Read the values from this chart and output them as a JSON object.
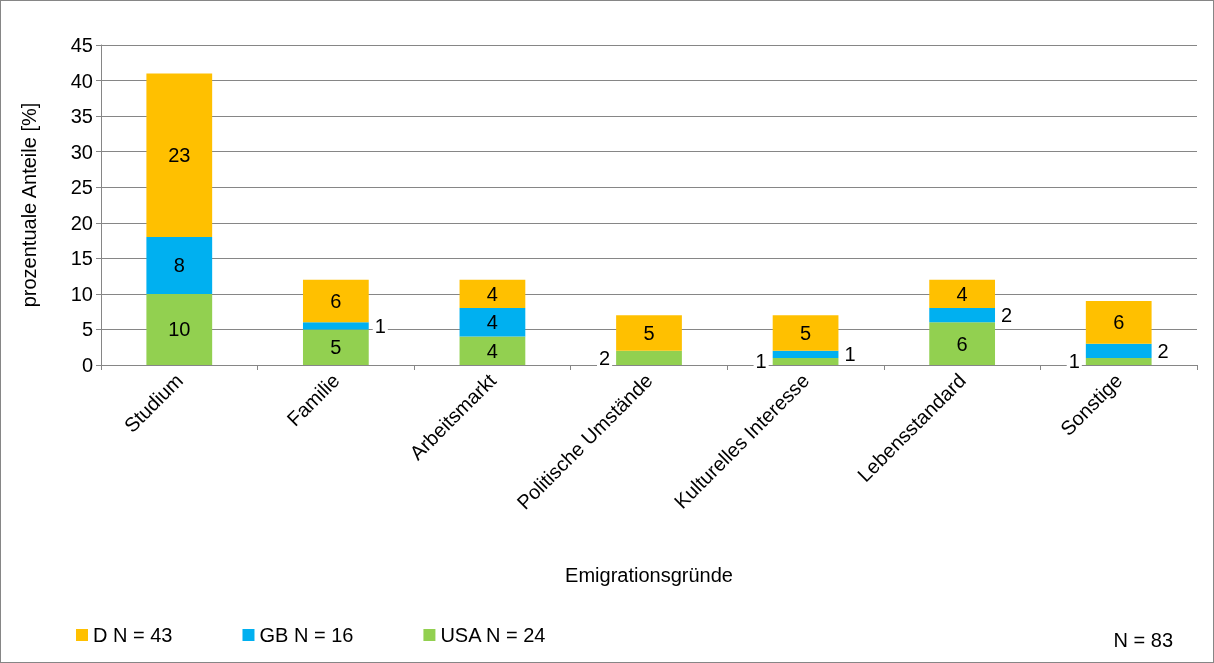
{
  "chart_data": {
    "type": "bar",
    "stacked": true,
    "xlabel": "Emigrationsgründe",
    "ylabel": "prozentuale Anteile [%]",
    "categories": [
      "Studium",
      "Familie",
      "Arbeitsmarkt",
      "Politische Umstände",
      "Kulturelles Interesse",
      "Lebensstandard",
      "Sonstige"
    ],
    "series": [
      {
        "name": "USA N = 24",
        "color": "#92d050",
        "values": [
          10,
          5,
          4,
          2,
          1,
          6,
          1
        ],
        "value_labels": [
          "10",
          "5",
          "4",
          "2",
          "1",
          "6",
          "1"
        ]
      },
      {
        "name": "GB N = 16",
        "color": "#00b0f0",
        "values": [
          8,
          1,
          4,
          0,
          1,
          2,
          2
        ],
        "value_labels": [
          "8",
          "1",
          "4",
          null,
          "1",
          "2",
          "2"
        ]
      },
      {
        "name": "D N = 43",
        "color": "#ffc000",
        "values": [
          23,
          6,
          4,
          5,
          5,
          4,
          6
        ],
        "value_labels": [
          "23",
          "6",
          "4",
          "5",
          "5",
          "4",
          "6"
        ]
      }
    ],
    "ylim": [
      0,
      45
    ],
    "yticks": [
      0,
      5,
      10,
      15,
      20,
      25,
      30,
      35,
      40,
      45
    ],
    "grid": "y",
    "legend": "bottom left",
    "annotations": [
      "N = 83"
    ]
  }
}
